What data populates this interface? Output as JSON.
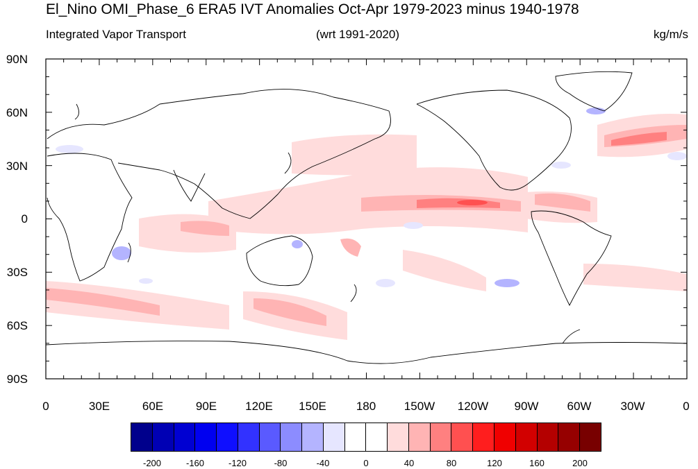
{
  "title": "El_Nino OMI_Phase_6 ERA5 IVT Anomalies Oct-Apr 1979-2023 minus 1940-1978",
  "subtitle_left": "Integrated Vapor Transport",
  "subtitle_center": "(wrt 1991-2020)",
  "subtitle_right": "kg/m/s",
  "y_ticks": [
    "90N",
    "60N",
    "30N",
    "0",
    "30S",
    "60S",
    "90S"
  ],
  "x_ticks": [
    "0",
    "30E",
    "60E",
    "90E",
    "120E",
    "150E",
    "180",
    "150W",
    "120W",
    "90W",
    "60W",
    "30W",
    "0"
  ],
  "colorbar": {
    "labels": [
      "-200",
      "-160",
      "-120",
      "-80",
      "-40",
      "0",
      "40",
      "80",
      "120",
      "160",
      "200"
    ],
    "colors": [
      "#00008c",
      "#0000b4",
      "#0000d2",
      "#0000f0",
      "#0f0fff",
      "#3232ff",
      "#5a5aff",
      "#8c8cff",
      "#b4b4ff",
      "#e6e6ff",
      "#ffffff",
      "#ffffff",
      "#ffdcdc",
      "#ffb4b4",
      "#ff8080",
      "#ff5050",
      "#ff1e1e",
      "#f00000",
      "#d20000",
      "#b40000",
      "#960000",
      "#780000"
    ]
  },
  "map_features": {
    "projection": "cylindrical-equidistant",
    "lon_range": [
      0,
      360
    ],
    "lat_range": [
      -90,
      90
    ],
    "positive_anomaly_color": "#ff8080",
    "negative_anomaly_color": "#b4b4ff"
  }
}
